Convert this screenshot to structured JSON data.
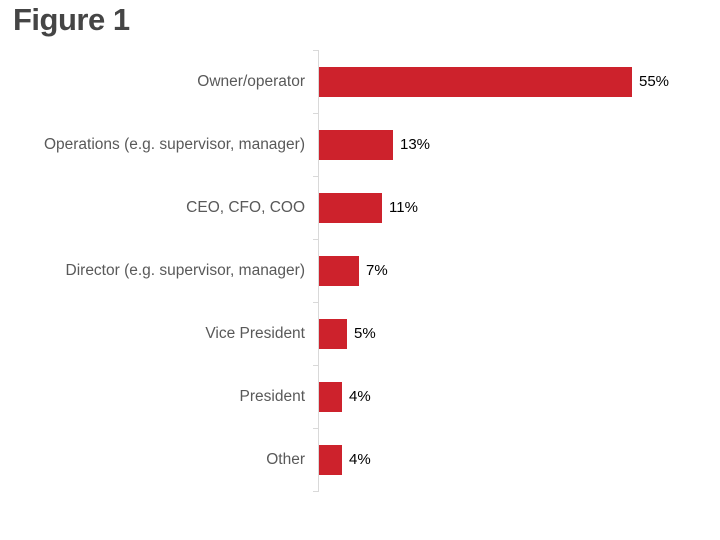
{
  "title": "Figure 1",
  "chart_data": {
    "type": "bar",
    "orientation": "horizontal",
    "title": "Figure 1",
    "xlabel": "",
    "ylabel": "",
    "categories": [
      "Owner/operator",
      "Operations (e.g. supervisor, manager)",
      "CEO, CFO, COO",
      "Director (e.g. supervisor, manager)",
      "Vice President",
      "President",
      "Other"
    ],
    "values": [
      55,
      13,
      11,
      7,
      5,
      4,
      4
    ],
    "value_labels": [
      "55%",
      "13%",
      "11%",
      "7%",
      "5%",
      "4%",
      "4%"
    ],
    "grid": false,
    "legend": false,
    "value_axis_visible": false,
    "colors": {
      "bar": "#cd222c",
      "axis": "#d9d9d9",
      "category_label": "#595959",
      "value_label": "#000000",
      "title": "#454545",
      "background": "#ffffff"
    }
  }
}
